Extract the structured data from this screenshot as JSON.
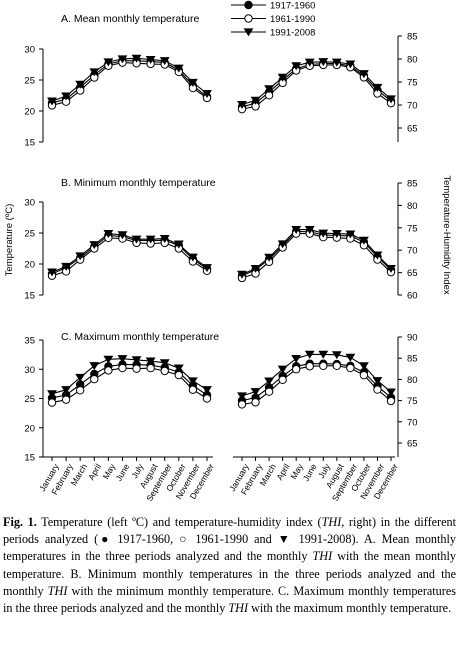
{
  "legend": {
    "entries": [
      {
        "label": "1917-1960",
        "marker": "filled-circle"
      },
      {
        "label": "1961-1990",
        "marker": "open-circle"
      },
      {
        "label": "1991-2008",
        "marker": "filled-triangle-down"
      }
    ]
  },
  "y_left_label": "Temperature (ºC)",
  "y_right_label": "Temperature-Humidity Index",
  "months": [
    "January",
    "February",
    "March",
    "April",
    "May",
    "June",
    "July",
    "August",
    "September",
    "October",
    "November",
    "December"
  ],
  "caption": {
    "fig": "Fig. 1.",
    "p1": " Temperature (left ºC) and temperature-humidity index (",
    "thi": "THI",
    "p2": ", right) in the different periods analyzed (● 1917-1960, ○ 1961-1990 and ▼ 1991-2008). A. Mean monthly temperatures in the three periods analyzed and the monthly ",
    "p3": " with the mean monthly temperature. B. Minimum monthly temperatures in the three periods analyzed and the monthly ",
    "p4": " with the minimum monthly temperature. C. Maximum monthly temperatures in the three periods analyzed and the monthly ",
    "p5": " with the maximum monthly temperature."
  },
  "chart_data": [
    {
      "id": "A-temp",
      "type": "line",
      "title": "A. Mean monthly temperature",
      "axis": "left",
      "ylim": [
        15,
        30
      ],
      "yticks": [
        15,
        20,
        25,
        30
      ],
      "series": [
        {
          "name": "1917-1960",
          "values": [
            21.3,
            21.9,
            23.8,
            25.8,
            27.6,
            28.1,
            28.1,
            28.0,
            27.8,
            26.6,
            24.1,
            22.3
          ]
        },
        {
          "name": "1961-1990",
          "values": [
            20.9,
            21.5,
            23.3,
            25.4,
            27.3,
            27.8,
            27.7,
            27.6,
            27.5,
            26.3,
            23.7,
            22.1
          ]
        },
        {
          "name": "1991-2008",
          "values": [
            21.6,
            22.4,
            24.3,
            26.3,
            27.9,
            28.4,
            28.5,
            28.3,
            28.1,
            26.9,
            24.6,
            22.8
          ]
        }
      ]
    },
    {
      "id": "A-thi",
      "type": "line",
      "axis": "right",
      "ylim": [
        65,
        85
      ],
      "yticks": [
        65,
        70,
        75,
        80,
        85
      ],
      "series": [
        {
          "name": "1917-1960",
          "values": [
            69.6,
            70.4,
            72.8,
            75.4,
            77.9,
            78.8,
            79.0,
            79.0,
            78.5,
            76.4,
            73.2,
            70.9
          ]
        },
        {
          "name": "1961-1990",
          "values": [
            69.1,
            69.7,
            72.1,
            74.8,
            77.5,
            78.5,
            78.7,
            78.7,
            78.2,
            76.0,
            72.5,
            70.4
          ]
        },
        {
          "name": "1991-2008",
          "values": [
            70.1,
            71.0,
            73.5,
            76.0,
            78.5,
            79.3,
            79.4,
            79.3,
            78.9,
            76.8,
            73.8,
            71.3
          ]
        }
      ]
    },
    {
      "id": "B-temp",
      "type": "line",
      "title": "B. Minimum monthly temperature",
      "axis": "left",
      "ylim": [
        15,
        30
      ],
      "yticks": [
        15,
        20,
        25,
        30
      ],
      "series": [
        {
          "name": "1917-1960",
          "values": [
            18.4,
            19.4,
            21.0,
            22.8,
            24.6,
            24.4,
            23.8,
            23.8,
            23.8,
            23.0,
            20.8,
            19.2
          ]
        },
        {
          "name": "1961-1990",
          "values": [
            18.1,
            18.8,
            20.7,
            22.5,
            24.2,
            24.1,
            23.4,
            23.3,
            23.4,
            22.5,
            20.4,
            18.9
          ]
        },
        {
          "name": "1991-2008",
          "values": [
            18.7,
            19.6,
            21.3,
            23.1,
            24.9,
            24.7,
            24.0,
            24.0,
            24.1,
            23.2,
            21.1,
            19.4
          ]
        }
      ]
    },
    {
      "id": "B-thi",
      "type": "line",
      "axis": "right",
      "ylim": [
        60,
        85
      ],
      "yticks": [
        60,
        65,
        70,
        75,
        80,
        85
      ],
      "series": [
        {
          "name": "1917-1960",
          "values": [
            64.3,
            65.6,
            68.0,
            71.0,
            74.2,
            74.1,
            73.4,
            73.3,
            73.2,
            71.8,
            68.5,
            65.6
          ]
        },
        {
          "name": "1961-1990",
          "values": [
            63.8,
            64.8,
            67.4,
            70.6,
            73.7,
            73.7,
            72.9,
            72.8,
            72.6,
            71.1,
            67.9,
            65.1
          ]
        },
        {
          "name": "1991-2008",
          "values": [
            64.6,
            65.9,
            68.4,
            71.4,
            74.6,
            74.6,
            73.8,
            73.7,
            73.6,
            72.2,
            68.9,
            65.9
          ]
        }
      ]
    },
    {
      "id": "C-temp",
      "type": "line",
      "title": "C. Maximum monthly temperature",
      "axis": "left",
      "ylim": [
        15,
        35
      ],
      "yticks": [
        15,
        20,
        25,
        30,
        35
      ],
      "series": [
        {
          "name": "1917-1960",
          "values": [
            25.1,
            25.6,
            27.4,
            29.2,
            30.5,
            30.8,
            30.8,
            30.7,
            30.3,
            29.5,
            27.2,
            25.6
          ]
        },
        {
          "name": "1961-1990",
          "values": [
            24.3,
            24.8,
            26.4,
            28.3,
            29.8,
            30.2,
            30.1,
            30.2,
            29.7,
            29.0,
            26.5,
            25.0
          ]
        },
        {
          "name": "1991-2008",
          "values": [
            25.8,
            26.5,
            28.6,
            30.6,
            31.7,
            31.8,
            31.6,
            31.4,
            31.1,
            30.2,
            28.0,
            26.5
          ]
        }
      ]
    },
    {
      "id": "C-thi",
      "type": "line",
      "axis": "right",
      "ylim": [
        65,
        90
      ],
      "yticks": [
        65,
        70,
        75,
        80,
        85,
        90
      ],
      "series": [
        {
          "name": "1917-1960",
          "values": [
            75.0,
            75.7,
            78.1,
            80.8,
            83.1,
            83.7,
            83.7,
            83.6,
            83.2,
            81.7,
            78.4,
            75.7
          ]
        },
        {
          "name": "1961-1990",
          "values": [
            74.1,
            74.6,
            77.1,
            79.9,
            82.4,
            83.1,
            83.2,
            83.2,
            82.7,
            81.0,
            77.6,
            74.9
          ]
        },
        {
          "name": "1991-2008",
          "values": [
            76.1,
            77.1,
            79.6,
            82.4,
            84.9,
            85.9,
            85.9,
            85.8,
            85.2,
            83.2,
            79.7,
            77.0
          ]
        }
      ]
    }
  ]
}
